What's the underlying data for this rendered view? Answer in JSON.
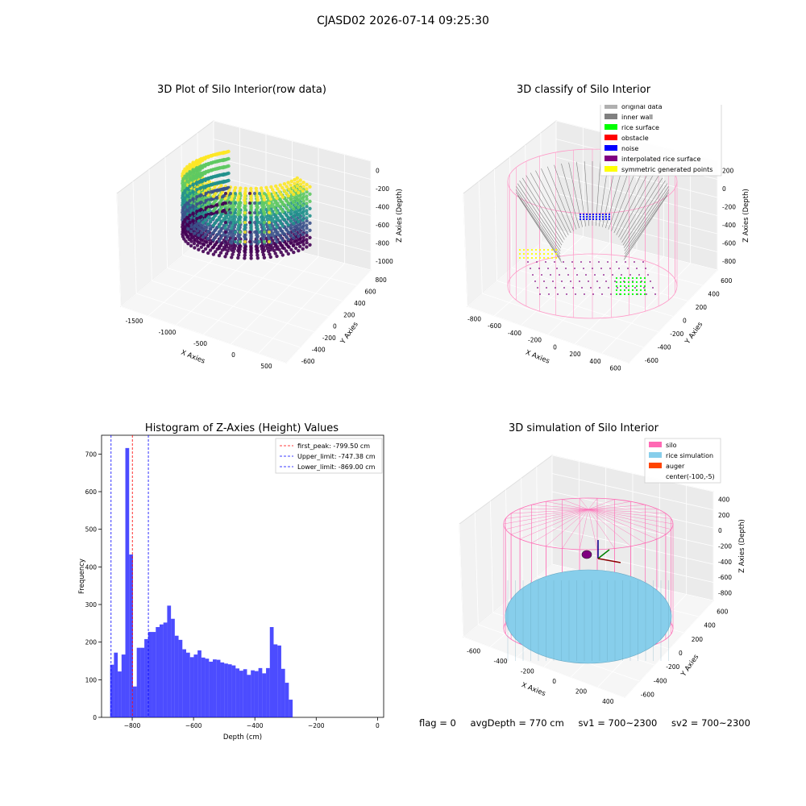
{
  "figure": {
    "suptitle": "CJASD02 2026-07-14 09:25:30"
  },
  "panels": {
    "raw": {
      "title": "3D Plot of Silo Interior(row data)",
      "xlabel": "X Axies",
      "ylabel": "Y Axies",
      "zlabel": "Z Axies (Depth)",
      "xticks": [
        "-1500",
        "-1000",
        "-500",
        "0",
        "500"
      ],
      "yticks": [
        "-600",
        "-400",
        "-200",
        "0",
        "200",
        "400",
        "600",
        "800"
      ],
      "zticks": [
        "0",
        "-200",
        "-400",
        "-600",
        "-800",
        "-1000"
      ],
      "colormap": [
        "#440154",
        "#3b528b",
        "#21918c",
        "#5ec962",
        "#fde725"
      ]
    },
    "classify": {
      "title": "3D classify of Silo Interior",
      "xlabel": "X Axies",
      "ylabel": "Y Axies",
      "zlabel": "Z Axies (Depth)",
      "xticks": [
        "-800",
        "-600",
        "-400",
        "-200",
        "0",
        "200",
        "400",
        "600"
      ],
      "yticks": [
        "-600",
        "-400",
        "-200",
        "0",
        "200",
        "400",
        "600"
      ],
      "zticks": [
        "200",
        "0",
        "-200",
        "-400",
        "-600",
        "-800"
      ],
      "legend": [
        {
          "label": "original data",
          "color": "#b0b0b0"
        },
        {
          "label": "inner wall",
          "color": "#808080"
        },
        {
          "label": "rice surface",
          "color": "#00ff00"
        },
        {
          "label": "obstacle",
          "color": "#ff0000"
        },
        {
          "label": "noise",
          "color": "#0000ff"
        },
        {
          "label": "interpolated rice surface",
          "color": "#800080"
        },
        {
          "label": "symmetric generated points",
          "color": "#ffff00"
        }
      ]
    },
    "simulation": {
      "title": "3D simulation of Silo Interior",
      "xlabel": "X Axies",
      "ylabel": "Y Axies",
      "zlabel": "Z Axies (Depth)",
      "xticks": [
        "-600",
        "-400",
        "-200",
        "0",
        "200",
        "400"
      ],
      "yticks": [
        "-600",
        "-400",
        "-200",
        "0",
        "200",
        "400",
        "600"
      ],
      "zticks": [
        "400",
        "200",
        "0",
        "-200",
        "-400",
        "-600",
        "-800"
      ],
      "legend": [
        {
          "label": "silo",
          "color": "#ff69b4"
        },
        {
          "label": "rice simulation",
          "color": "#87ceeb"
        },
        {
          "label": "auger",
          "color": "#ff4500"
        },
        {
          "label": "center(-100,-5)",
          "color": ""
        }
      ]
    }
  },
  "status": {
    "flag": "flag = 0",
    "avg_depth": "avgDepth = 770 cm",
    "sv1": "sv1 = 700~2300",
    "sv2": "sv2 = 700~2300"
  },
  "chart_data": [
    {
      "type": "bar",
      "title": "Histogram of Z-Axies (Height) Values",
      "xlabel": "Depth (cm)",
      "ylabel": "Frequency",
      "xlim": [
        -900,
        20
      ],
      "ylim": [
        0,
        750
      ],
      "xticks": [
        -800,
        -600,
        -400,
        -200,
        0
      ],
      "yticks": [
        0,
        100,
        200,
        300,
        400,
        500,
        600,
        700
      ],
      "bar_color": "#0000ff",
      "bin_start": -872,
      "bin_width": 12.4,
      "values": [
        140,
        172,
        122,
        167,
        716,
        433,
        82,
        185,
        185,
        208,
        227,
        227,
        240,
        247,
        252,
        297,
        262,
        217,
        206,
        181,
        172,
        160,
        167,
        178,
        159,
        156,
        148,
        154,
        153,
        146,
        143,
        141,
        138,
        130,
        124,
        128,
        113,
        125,
        123,
        131,
        117,
        131,
        240,
        194,
        191,
        129,
        92,
        47
      ],
      "reference_lines": [
        {
          "label": "first_peak: -799.50 cm",
          "x": -799.5,
          "color": "#ff0000"
        },
        {
          "label": "Upper_limit: -747.38 cm",
          "x": -747.38,
          "color": "#0000ff"
        },
        {
          "label": "Lower_limit: -869.00 cm",
          "x": -869.0,
          "color": "#0000ff"
        }
      ],
      "legend_position": "upper right",
      "grid": false
    }
  ]
}
